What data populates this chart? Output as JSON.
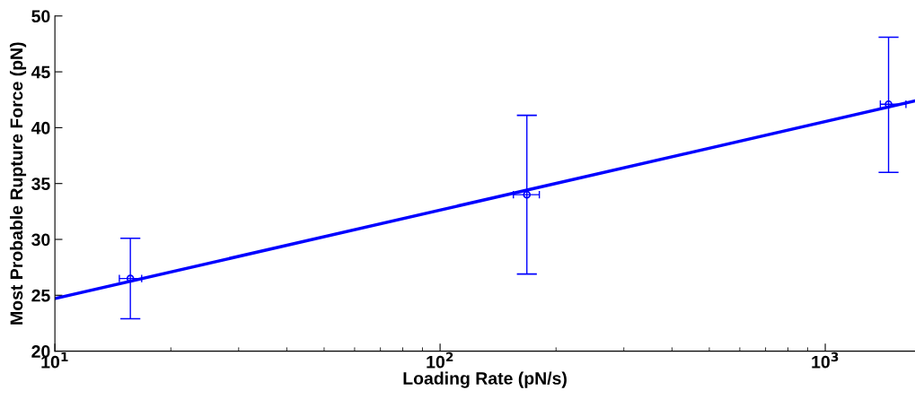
{
  "chart_data": {
    "type": "scatter",
    "xlabel": "Loading Rate (pN/s)",
    "ylabel": "Most Probable Rupture Force (pN)",
    "log": "x",
    "grid": false,
    "marker": "circle",
    "xlim": [
      10,
      1710
    ],
    "ylim": [
      20,
      50
    ],
    "xticks": [
      {
        "value": 10,
        "label": "10$^{1}$"
      },
      {
        "value": 100,
        "label": "10$^{2}$"
      },
      {
        "value": 1000,
        "label": "10$^{3}$"
      }
    ],
    "yticks": [
      20,
      25,
      30,
      35,
      40,
      45,
      50
    ],
    "series": [
      {
        "color": "#0000ff",
        "x": [
          15.7,
          168,
          1460
        ],
        "values": [
          26.5,
          34.0,
          42.1
        ],
        "errors": [
          [
            22.9,
            30.1
          ],
          [
            26.9,
            41.1
          ],
          [
            36.0,
            48.1
          ]
        ],
        "xerrors": [
          [
            14.7,
            16.8
          ],
          [
            155,
            181
          ],
          [
            1390,
            1620
          ]
        ]
      },
      {
        "type": "line",
        "color": "#0000ff",
        "x": [
          10,
          1710
        ],
        "values": [
          24.7,
          42.4
        ],
        "marker": "none",
        "line_style": "solid"
      }
    ]
  }
}
